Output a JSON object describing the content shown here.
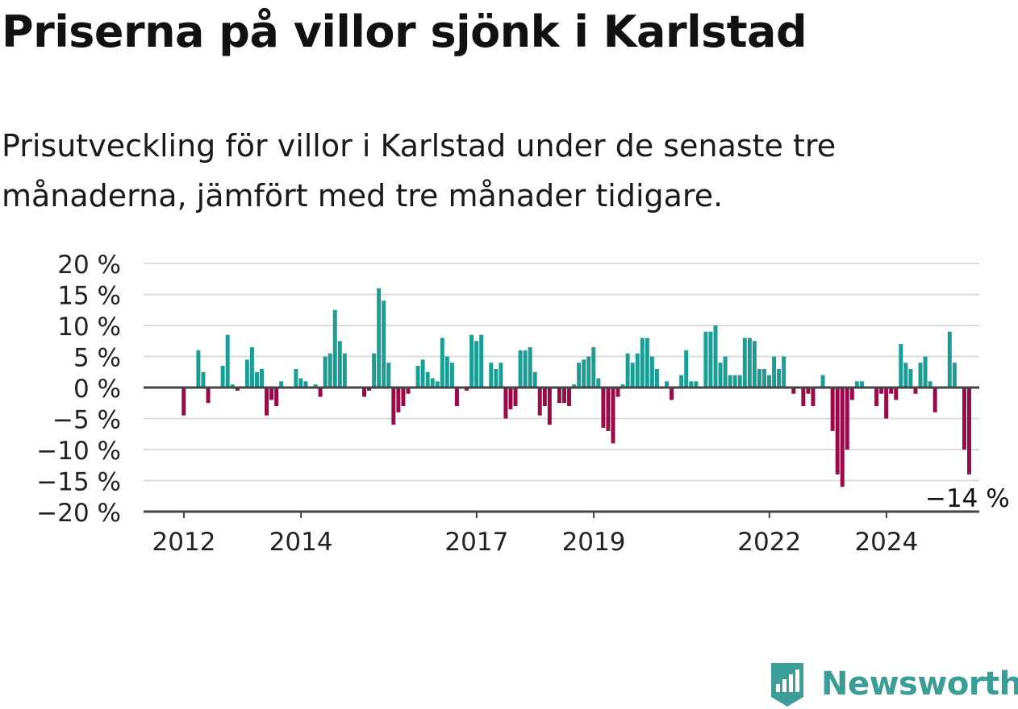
{
  "title": "Priserna på villor sjönk i Karlstad",
  "subtitle": "Prisutveckling för villor i Karlstad under de senaste tre månaderna, jämfört med tre månader tidigare.",
  "brand": {
    "name": "Newsworthy",
    "icon": "newsworthy-logo-icon"
  },
  "colors": {
    "positive": "#1a9e94",
    "negative": "#9b0a48",
    "grid": "#dcdcdc",
    "axis": "#444444",
    "text": "#222222"
  },
  "chart_data": {
    "type": "bar",
    "x_unit": "month",
    "x_start": "2012-01",
    "ylim": [
      -20,
      20
    ],
    "yticks": [
      20,
      15,
      10,
      5,
      0,
      -5,
      -10,
      -15,
      -20
    ],
    "ytick_labels": [
      "20 %",
      "15 %",
      "10 %",
      "5 %",
      "0 %",
      "−5 %",
      "−10 %",
      "−15 %",
      "−20 %"
    ],
    "xtick_labels": [
      {
        "label": "2012",
        "date": "2012-01"
      },
      {
        "label": "2014",
        "date": "2014-01"
      },
      {
        "label": "2017",
        "date": "2017-01"
      },
      {
        "label": "2019",
        "date": "2019-01"
      },
      {
        "label": "2022",
        "date": "2022-01"
      },
      {
        "label": "2024",
        "date": "2024-01"
      }
    ],
    "values": [
      -4.5,
      0,
      0,
      6,
      2.5,
      -2.5,
      0,
      0,
      3.5,
      8.5,
      0.5,
      -0.5,
      0,
      4.5,
      6.5,
      2.5,
      3,
      -4.5,
      -2,
      -3,
      1,
      0,
      0,
      3,
      1.5,
      1,
      0,
      0.5,
      -1.5,
      5,
      5.5,
      12.5,
      7.5,
      5.5,
      0,
      0,
      0,
      -1.5,
      -0.5,
      5.5,
      16,
      14,
      4,
      -6,
      -4,
      -3,
      -1,
      0,
      3.5,
      4.5,
      2.5,
      1.5,
      1,
      8,
      5,
      4,
      -3,
      0,
      -0.5,
      8.5,
      7.5,
      8.5,
      0,
      4,
      3,
      4,
      -5,
      -3.5,
      -3,
      6,
      6,
      6.5,
      2.5,
      -4.5,
      -3,
      -6,
      0,
      -2.5,
      -2.5,
      -3,
      0.5,
      4,
      4.5,
      5,
      6.5,
      1.5,
      -6.5,
      -7,
      -9,
      -1.5,
      0.5,
      5.5,
      4,
      5.5,
      8,
      8,
      5,
      3,
      0,
      1,
      -2,
      0,
      2,
      6,
      1,
      1,
      0,
      9,
      9,
      10,
      4,
      5,
      2,
      2,
      2,
      8,
      8,
      7.5,
      3,
      3,
      2,
      5,
      3,
      5,
      0,
      -1,
      0,
      -3,
      -1,
      -3,
      0,
      2,
      0,
      -7,
      -14,
      -16,
      -10,
      -2,
      1,
      1,
      0,
      0,
      -3,
      -1,
      -5,
      -1,
      -2,
      7,
      4,
      3,
      -1,
      4,
      5,
      1,
      -4,
      0,
      0,
      9,
      4,
      0,
      -10,
      -14
    ],
    "last_value_label": "−14 %"
  }
}
